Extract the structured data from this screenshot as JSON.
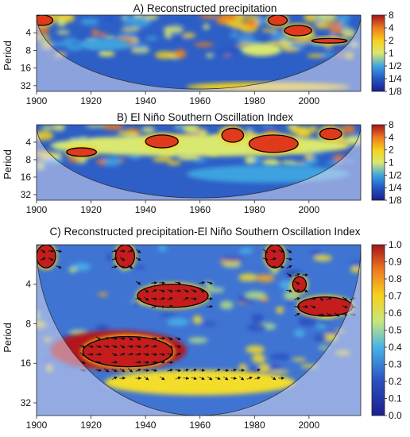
{
  "chart_data": [
    {
      "type": "heatmap",
      "title": "A) Reconstructed precipitation",
      "xlabel": "",
      "ylabel": "Period",
      "x_ticks": [
        "1900",
        "1920",
        "1940",
        "1960",
        "1980",
        "2000"
      ],
      "y_ticks": [
        "4",
        "8",
        "16",
        "32"
      ],
      "xlim": [
        1900,
        2019
      ],
      "ylim_period": [
        2,
        40
      ],
      "colorbar_ticks": [
        "8",
        "4",
        "2",
        "1",
        "1/2",
        "1/4",
        "1/8"
      ],
      "colorbar_range": [
        0.125,
        8
      ],
      "colorbar_scale": "log2",
      "grid": false,
      "cone_of_influence": true,
      "significant_regions": [
        {
          "x": [
            1898,
            1906
          ],
          "period": [
            2,
            3
          ]
        },
        {
          "x": [
            1985,
            1992
          ],
          "period": [
            2,
            3
          ]
        },
        {
          "x": [
            1991,
            2001
          ],
          "period": [
            3,
            4.5
          ]
        },
        {
          "x": [
            2001,
            2014
          ],
          "period": [
            5,
            6
          ]
        }
      ],
      "features": [
        {
          "x": [
            1955,
            2015
          ],
          "period": [
            28,
            40
          ],
          "level": 4
        },
        {
          "x": [
            1975,
            1990
          ],
          "period": [
            6,
            10
          ],
          "level": 3
        },
        {
          "x": [
            1915,
            1935
          ],
          "period": [
            5,
            8
          ],
          "level": 2
        }
      ]
    },
    {
      "type": "heatmap",
      "title": "B) El Niño Southern Oscillation Index",
      "xlabel": "",
      "ylabel": "Period",
      "x_ticks": [
        "1900",
        "1920",
        "1940",
        "1960",
        "1980",
        "2000"
      ],
      "y_ticks": [
        "4",
        "8",
        "16",
        "32"
      ],
      "xlim": [
        1900,
        2019
      ],
      "ylim_period": [
        2,
        40
      ],
      "colorbar_ticks": [
        "8",
        "4",
        "2",
        "1",
        "1/2",
        "1/4",
        "1/8"
      ],
      "colorbar_range": [
        0.125,
        8
      ],
      "colorbar_scale": "log2",
      "grid": false,
      "cone_of_influence": true,
      "significant_regions": [
        {
          "x": [
            1911,
            1922
          ],
          "period": [
            5,
            7
          ]
        },
        {
          "x": [
            1940,
            1952
          ],
          "period": [
            3,
            5
          ]
        },
        {
          "x": [
            1968,
            1976
          ],
          "period": [
            2.3,
            4
          ]
        },
        {
          "x": [
            1978,
            1996
          ],
          "period": [
            3,
            6
          ]
        },
        {
          "x": [
            2004,
            2012
          ],
          "period": [
            2.3,
            3.6
          ]
        }
      ],
      "features": [
        {
          "x": [
            1905,
            2015
          ],
          "period": [
            3,
            7
          ],
          "level": 3
        },
        {
          "x": [
            1955,
            2015
          ],
          "period": [
            10,
            20
          ],
          "level": 2
        }
      ]
    },
    {
      "type": "heatmap",
      "title": "C) Reconstructed precipitation-El Niño Southern Oscillation Index",
      "xlabel": "",
      "ylabel": "Period",
      "x_ticks": [
        "1900",
        "1920",
        "1940",
        "1960",
        "1980",
        "2000"
      ],
      "y_ticks": [
        "4",
        "8",
        "16",
        "32"
      ],
      "xlim": [
        1900,
        2019
      ],
      "ylim_period": [
        2,
        40
      ],
      "colorbar_ticks": [
        "1.0",
        "0.9",
        "0.8",
        "0.7",
        "0.6",
        "0.5",
        "0.4",
        "0.3",
        "0.2",
        "0.1",
        "0.0"
      ],
      "colorbar_range": [
        0,
        1
      ],
      "grid": false,
      "cone_of_influence": true,
      "phase_arrows": true,
      "significant_regions": [
        {
          "x": [
            1900,
            1907
          ],
          "period": [
            2,
            3
          ]
        },
        {
          "x": [
            1929,
            1936
          ],
          "period": [
            2,
            3
          ]
        },
        {
          "x": [
            1937,
            1963
          ],
          "period": [
            4,
            6
          ]
        },
        {
          "x": [
            1917,
            1950
          ],
          "period": [
            10,
            17
          ]
        },
        {
          "x": [
            1984,
            1991
          ],
          "period": [
            2,
            3
          ]
        },
        {
          "x": [
            1994,
            1999
          ],
          "period": [
            3.5,
            4.6
          ]
        },
        {
          "x": [
            1996,
            2016
          ],
          "period": [
            5,
            7
          ]
        }
      ],
      "features": [
        {
          "x": [
            1905,
            1955
          ],
          "period": [
            9,
            18
          ],
          "level": 0.9
        },
        {
          "x": [
            1925,
            1995
          ],
          "period": [
            18,
            28
          ],
          "level": 0.6
        }
      ]
    }
  ]
}
